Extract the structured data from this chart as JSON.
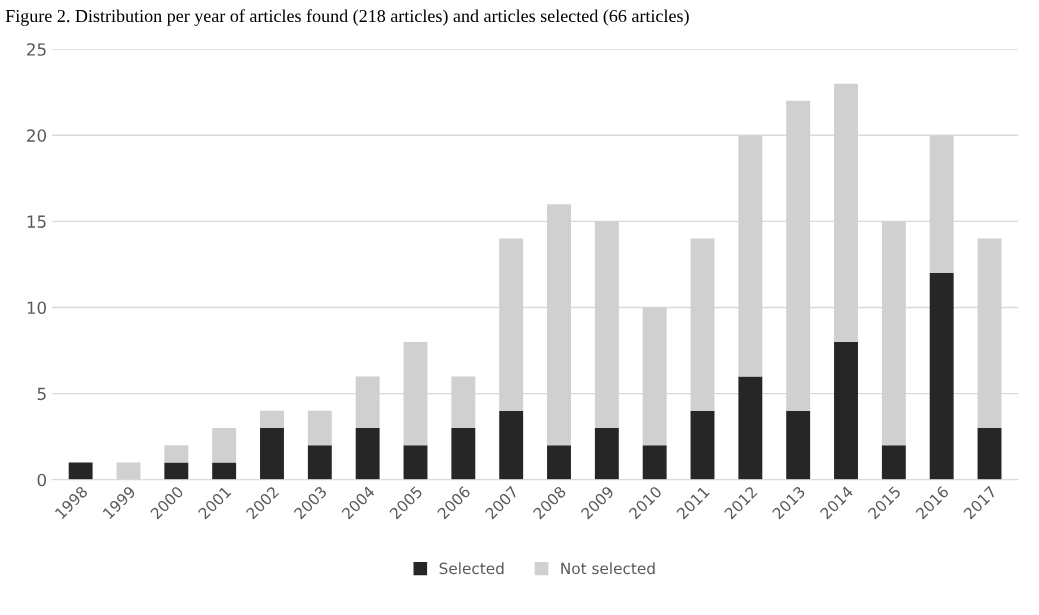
{
  "chart_data": {
    "type": "bar",
    "stacked": true,
    "title": "Figure 2. Distribution per year of articles found (218 articles) and articles selected (66 articles)",
    "categories": [
      "1998",
      "1999",
      "2000",
      "2001",
      "2002",
      "2003",
      "2004",
      "2005",
      "2006",
      "2007",
      "2008",
      "2009",
      "2010",
      "2011",
      "2012",
      "2013",
      "2014",
      "2015",
      "2016",
      "2017"
    ],
    "series": [
      {
        "name": "Selected",
        "color": "#262626",
        "values": [
          1,
          0,
          1,
          1,
          3,
          2,
          3,
          2,
          3,
          4,
          2,
          3,
          2,
          4,
          6,
          4,
          8,
          2,
          12,
          3
        ]
      },
      {
        "name": "Not selected",
        "color": "#d0d0d0",
        "values": [
          0,
          1,
          1,
          2,
          1,
          2,
          3,
          6,
          3,
          10,
          14,
          12,
          8,
          10,
          14,
          18,
          15,
          13,
          8,
          11
        ]
      }
    ],
    "ylim": [
      0,
      25
    ],
    "yticks": [
      0,
      5,
      10,
      15,
      20,
      25
    ],
    "grid": "y",
    "legend": "bottom"
  }
}
